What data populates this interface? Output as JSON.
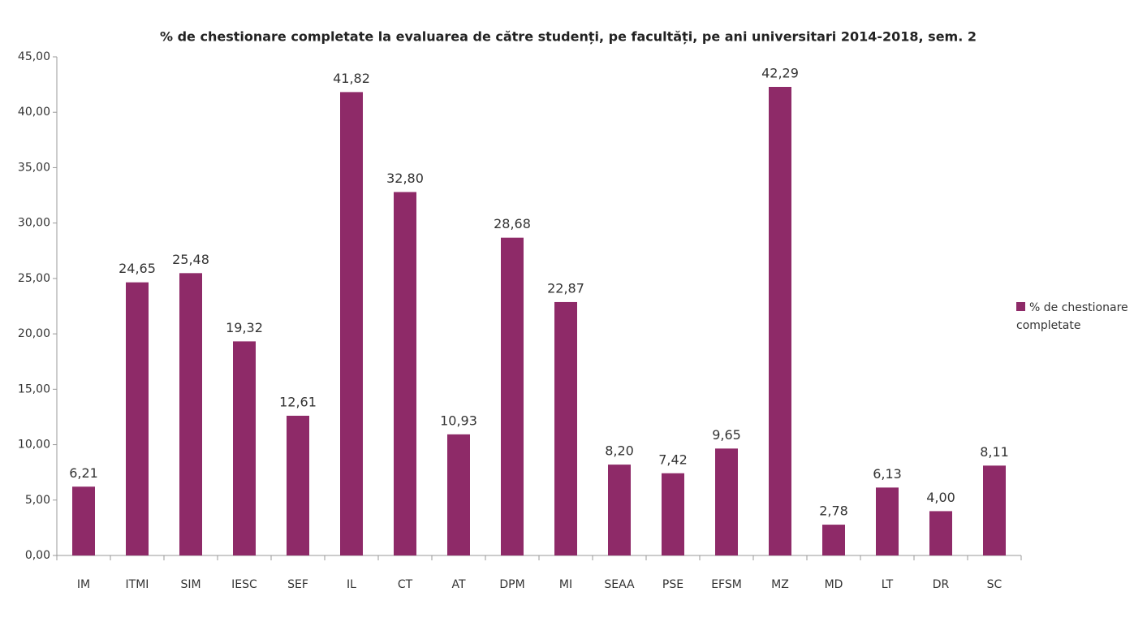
{
  "chart_data": {
    "type": "bar",
    "title": "% de chestionare completate la evaluarea de către studenți, pe facultăți, pe ani universitari 2014-2018, sem. 2",
    "categories": [
      "IM",
      "ITMI",
      "SIM",
      "IESC",
      "SEF",
      "IL",
      "CT",
      "AT",
      "DPM",
      "MI",
      "SEAA",
      "PSE",
      "EFSM",
      "MZ",
      "MD",
      "LT",
      "DR",
      "SC"
    ],
    "series": [
      {
        "name": "% de chestionare completate",
        "color": "#8e2a68",
        "values": [
          6.21,
          24.65,
          25.48,
          19.32,
          12.61,
          41.82,
          32.8,
          10.93,
          28.68,
          22.87,
          8.2,
          7.42,
          9.65,
          42.29,
          2.78,
          6.13,
          4.0,
          8.11
        ],
        "value_labels": [
          "6,21",
          "24,65",
          "25,48",
          "19,32",
          "12,61",
          "41,82",
          "32,80",
          "10,93",
          "28,68",
          "22,87",
          "8,20",
          "7,42",
          "9,65",
          "42,29",
          "2,78",
          "6,13",
          "4,00",
          "8,11"
        ]
      }
    ],
    "ylim": [
      0,
      45
    ],
    "yticks": [
      {
        "value": 0,
        "label": "0,00"
      },
      {
        "value": 5,
        "label": "5,00"
      },
      {
        "value": 10,
        "label": "10,00"
      },
      {
        "value": 15,
        "label": "15,00"
      },
      {
        "value": 20,
        "label": "20,00"
      },
      {
        "value": 25,
        "label": "25,00"
      },
      {
        "value": 30,
        "label": "30,00"
      },
      {
        "value": 35,
        "label": "35,00"
      },
      {
        "value": 40,
        "label": "40,00"
      },
      {
        "value": 45,
        "label": "45,00"
      }
    ],
    "grid": false,
    "legend": "right"
  }
}
